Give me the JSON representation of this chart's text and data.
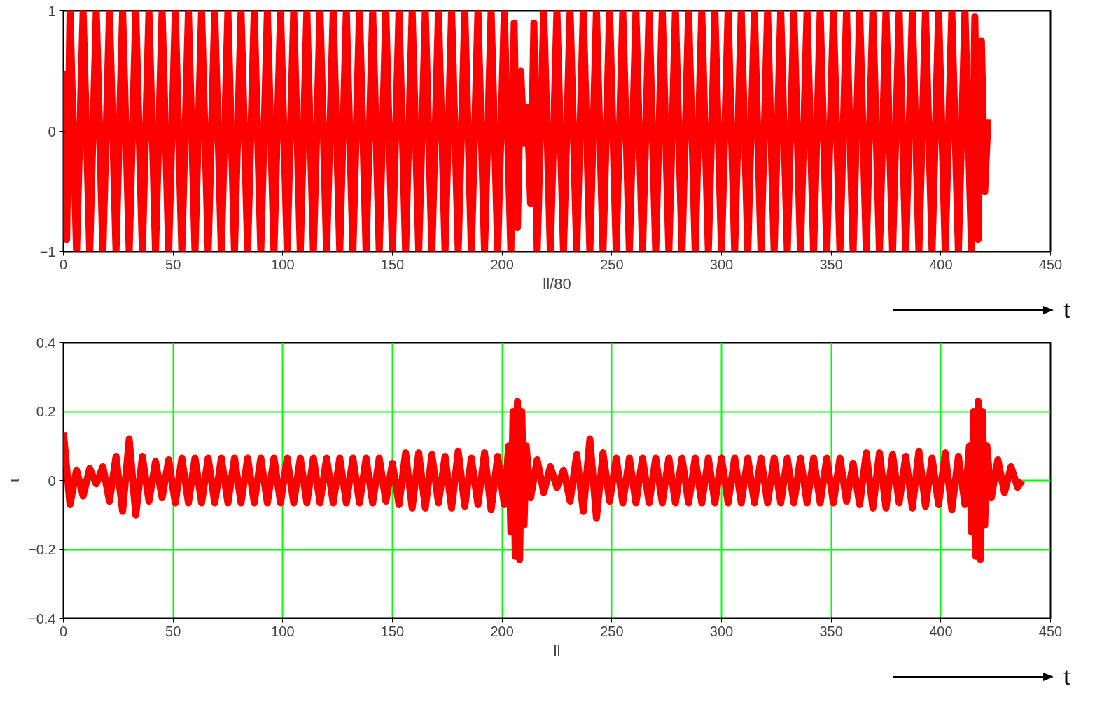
{
  "chart_data": [
    {
      "type": "line",
      "xlabel": "ll/80",
      "xlim": [
        0,
        450
      ],
      "xticks": [
        0,
        50,
        100,
        150,
        200,
        250,
        300,
        350,
        400,
        450
      ],
      "ylim": [
        -1,
        1
      ],
      "yticks": [
        -1,
        0,
        1
      ],
      "grid": false,
      "annotations": [
        "t"
      ],
      "series": [
        {
          "color": "#ff0000",
          "x": [
            0,
            1.5,
            3,
            6,
            9,
            12,
            15,
            18,
            21,
            24,
            27,
            30,
            33,
            36,
            39,
            42,
            45,
            48,
            51,
            54,
            57,
            60,
            63,
            66,
            69,
            72,
            75,
            78,
            81,
            84,
            87,
            90,
            93,
            96,
            99,
            102,
            105,
            108,
            111,
            114,
            117,
            120,
            123,
            126,
            129,
            132,
            135,
            138,
            141,
            144,
            147,
            150,
            153,
            156,
            159,
            162,
            165,
            168,
            171,
            174,
            177,
            180,
            183,
            186,
            189,
            192,
            195,
            198,
            201,
            204,
            205.5,
            207,
            208.5,
            210,
            211.5,
            213,
            214.5,
            216,
            219,
            222,
            225,
            228,
            231,
            234,
            237,
            240,
            243,
            246,
            249,
            252,
            255,
            258,
            261,
            264,
            267,
            270,
            273,
            276,
            279,
            282,
            285,
            288,
            291,
            294,
            297,
            300,
            303,
            306,
            309,
            312,
            315,
            318,
            321,
            324,
            327,
            330,
            333,
            336,
            339,
            342,
            345,
            348,
            351,
            354,
            357,
            360,
            363,
            366,
            369,
            372,
            375,
            378,
            381,
            384,
            387,
            390,
            393,
            396,
            399,
            402,
            405,
            408,
            411,
            414,
            415.5,
            417,
            418.5,
            420,
            421.5
          ],
          "values": [
            0.5,
            -0.9,
            1,
            -1,
            1,
            -1,
            1,
            -1,
            1,
            -1,
            1,
            -1,
            1,
            -1,
            1,
            -1,
            1,
            -1,
            1,
            -1,
            1,
            -1,
            1,
            -1,
            1,
            -1,
            1,
            -1,
            1,
            -1,
            1,
            -1,
            1,
            -1,
            1,
            -1,
            1,
            -1,
            1,
            -1,
            1,
            -1,
            1,
            -1,
            1,
            -1,
            1,
            -1,
            1,
            -1,
            1,
            -1,
            1,
            -1,
            1,
            -1,
            1,
            -1,
            1,
            -1,
            1,
            -1,
            1,
            -1,
            1,
            -1,
            1,
            -1,
            1,
            -1,
            0.9,
            -0.8,
            0.5,
            -0.1,
            0.2,
            -0.6,
            0.9,
            -1,
            1,
            -1,
            1,
            -1,
            1,
            -1,
            1,
            -1,
            1,
            -1,
            1,
            -1,
            1,
            -1,
            1,
            -1,
            1,
            -1,
            1,
            -1,
            1,
            -1,
            1,
            -1,
            1,
            -1,
            1,
            -1,
            1,
            -1,
            1,
            -1,
            1,
            -1,
            1,
            -1,
            1,
            -1,
            1,
            -1,
            1,
            -1,
            1,
            -1,
            1,
            -1,
            1,
            -1,
            1,
            -1,
            1,
            -1,
            1,
            -1,
            1,
            -1,
            1,
            -1,
            1,
            -1,
            1,
            -1,
            1,
            -1,
            1,
            -1,
            0.95,
            -0.9,
            0.75,
            -0.5,
            0.1
          ]
        }
      ]
    },
    {
      "type": "line",
      "xlabel": "ll",
      "ylabel": "ι",
      "xlim": [
        0,
        450
      ],
      "xticks": [
        0,
        50,
        100,
        150,
        200,
        250,
        300,
        350,
        400,
        450
      ],
      "ylim": [
        -0.4,
        0.4
      ],
      "yticks": [
        -0.4,
        -0.2,
        0,
        0.2,
        0.4
      ],
      "grid": true,
      "annotations": [
        "t"
      ],
      "series": [
        {
          "color": "#ff0000",
          "x": [
            0,
            3,
            6,
            9,
            12,
            15,
            18,
            21,
            24,
            27,
            30,
            33,
            36,
            39,
            42,
            45,
            48,
            51,
            54,
            57,
            60,
            63,
            66,
            69,
            72,
            75,
            78,
            81,
            84,
            87,
            90,
            93,
            96,
            99,
            102,
            105,
            108,
            111,
            114,
            117,
            120,
            123,
            126,
            129,
            132,
            135,
            138,
            141,
            144,
            147,
            150,
            153,
            156,
            159,
            162,
            165,
            168,
            171,
            174,
            177,
            180,
            183,
            186,
            189,
            192,
            195,
            198,
            201,
            203,
            204,
            205,
            206,
            207,
            208,
            209,
            210,
            211,
            213,
            216,
            219,
            222,
            225,
            228,
            231,
            234,
            237,
            240,
            243,
            246,
            249,
            252,
            255,
            258,
            261,
            264,
            267,
            270,
            273,
            276,
            279,
            282,
            285,
            288,
            291,
            294,
            297,
            300,
            303,
            306,
            309,
            312,
            315,
            318,
            321,
            324,
            327,
            330,
            333,
            336,
            339,
            342,
            345,
            348,
            351,
            354,
            357,
            360,
            363,
            366,
            369,
            372,
            375,
            378,
            381,
            384,
            387,
            390,
            393,
            396,
            399,
            402,
            405,
            408,
            411,
            413,
            414,
            415,
            416,
            417,
            418,
            419,
            420,
            421,
            423,
            426,
            429,
            432,
            435,
            437
          ],
          "values": [
            0.14,
            -0.07,
            0.03,
            -0.045,
            0.035,
            -0.01,
            0.04,
            -0.06,
            0.07,
            -0.09,
            0.12,
            -0.1,
            0.07,
            -0.06,
            0.055,
            -0.05,
            0.06,
            -0.065,
            0.065,
            -0.065,
            0.065,
            -0.065,
            0.065,
            -0.065,
            0.065,
            -0.065,
            0.065,
            -0.065,
            0.065,
            -0.065,
            0.065,
            -0.065,
            0.065,
            -0.065,
            0.065,
            -0.065,
            0.065,
            -0.065,
            0.065,
            -0.065,
            0.065,
            -0.065,
            0.065,
            -0.065,
            0.065,
            -0.065,
            0.065,
            -0.065,
            0.065,
            -0.06,
            0.05,
            -0.07,
            0.08,
            -0.08,
            0.08,
            -0.08,
            0.075,
            -0.065,
            0.07,
            -0.08,
            0.085,
            -0.075,
            0.065,
            -0.07,
            0.08,
            -0.085,
            0.07,
            -0.07,
            0.1,
            -0.15,
            0.2,
            -0.22,
            0.23,
            -0.23,
            0.2,
            -0.13,
            0.1,
            -0.05,
            0.06,
            -0.035,
            0.04,
            -0.02,
            0.03,
            -0.06,
            0.075,
            -0.09,
            0.12,
            -0.11,
            0.08,
            -0.06,
            0.065,
            -0.065,
            0.065,
            -0.065,
            0.065,
            -0.065,
            0.065,
            -0.065,
            0.065,
            -0.065,
            0.065,
            -0.065,
            0.065,
            -0.065,
            0.065,
            -0.065,
            0.065,
            -0.065,
            0.065,
            -0.065,
            0.065,
            -0.065,
            0.065,
            -0.065,
            0.065,
            -0.065,
            0.065,
            -0.065,
            0.065,
            -0.065,
            0.065,
            -0.065,
            0.065,
            -0.065,
            0.065,
            -0.06,
            0.05,
            -0.07,
            0.08,
            -0.08,
            0.08,
            -0.08,
            0.075,
            -0.065,
            0.07,
            -0.08,
            0.085,
            -0.075,
            0.065,
            -0.07,
            0.08,
            -0.085,
            0.07,
            -0.07,
            0.1,
            -0.15,
            0.2,
            -0.22,
            0.23,
            -0.23,
            0.2,
            -0.13,
            0.1,
            -0.05,
            0.06,
            -0.035,
            0.04,
            -0.02,
            0
          ]
        }
      ]
    }
  ]
}
